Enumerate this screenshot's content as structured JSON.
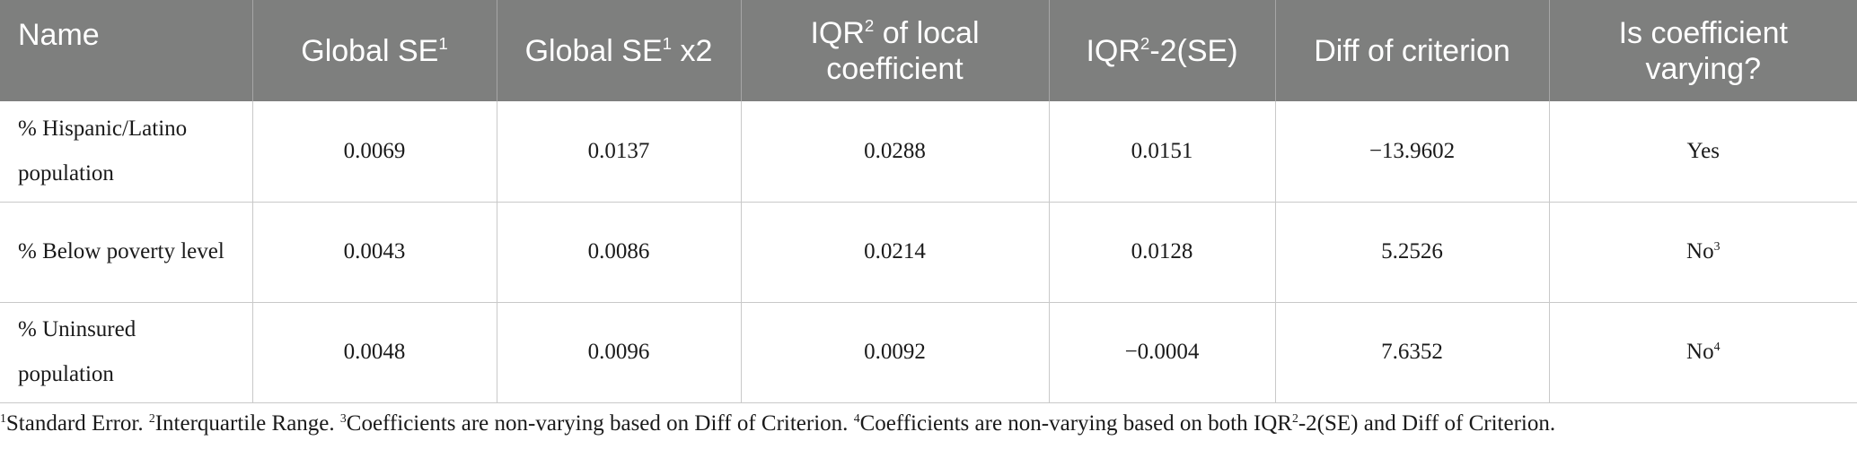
{
  "header": {
    "name": "Name",
    "global_se": "Global SE",
    "global_se_sup": "1",
    "global_se_x2_pre": "Global SE",
    "global_se_x2_sup": "1",
    "global_se_x2_post": " x2",
    "iqr_pre": "IQR",
    "iqr_sup": "2",
    "iqr_post": " of local coefficient",
    "iqr_minus_pre": "IQR",
    "iqr_minus_sup": "2",
    "iqr_minus_post": "-2(SE)",
    "diff": "Diff of criterion",
    "varying": "Is coefficient varying?"
  },
  "rows": [
    {
      "name": "% Hispanic/Latino population",
      "global_se": "0.0069",
      "global_se_x2": "0.0137",
      "iqr": "0.0288",
      "iqr_minus_2se": "0.0151",
      "diff": "−13.9602",
      "varying": "Yes",
      "varying_sup": ""
    },
    {
      "name": "% Below poverty level",
      "global_se": "0.0043",
      "global_se_x2": "0.0086",
      "iqr": "0.0214",
      "iqr_minus_2se": "0.0128",
      "diff": "5.2526",
      "varying": "No",
      "varying_sup": "3"
    },
    {
      "name": "% Uninsured population",
      "global_se": "0.0048",
      "global_se_x2": "0.0096",
      "iqr": "0.0092",
      "iqr_minus_2se": "−0.0004",
      "diff": "7.6352",
      "varying": "No",
      "varying_sup": "4"
    }
  ],
  "footnotes": [
    {
      "mark": "1",
      "text": "Standard Error. "
    },
    {
      "mark": "2",
      "text": "Interquartile Range. "
    },
    {
      "mark": "3",
      "text": "Coefficients are non-varying based on Diff of Criterion. "
    },
    {
      "mark": "4",
      "text": "Coefficients are non-varying based on both IQR",
      "inner_sup": "2",
      "tail": "-2(SE) and Diff of Criterion."
    }
  ],
  "colors": {
    "header_background": "#7e7f7e",
    "header_text": "#ffffff",
    "grid_line": "#c9c9c9",
    "body_text": "#1a1a1a"
  }
}
